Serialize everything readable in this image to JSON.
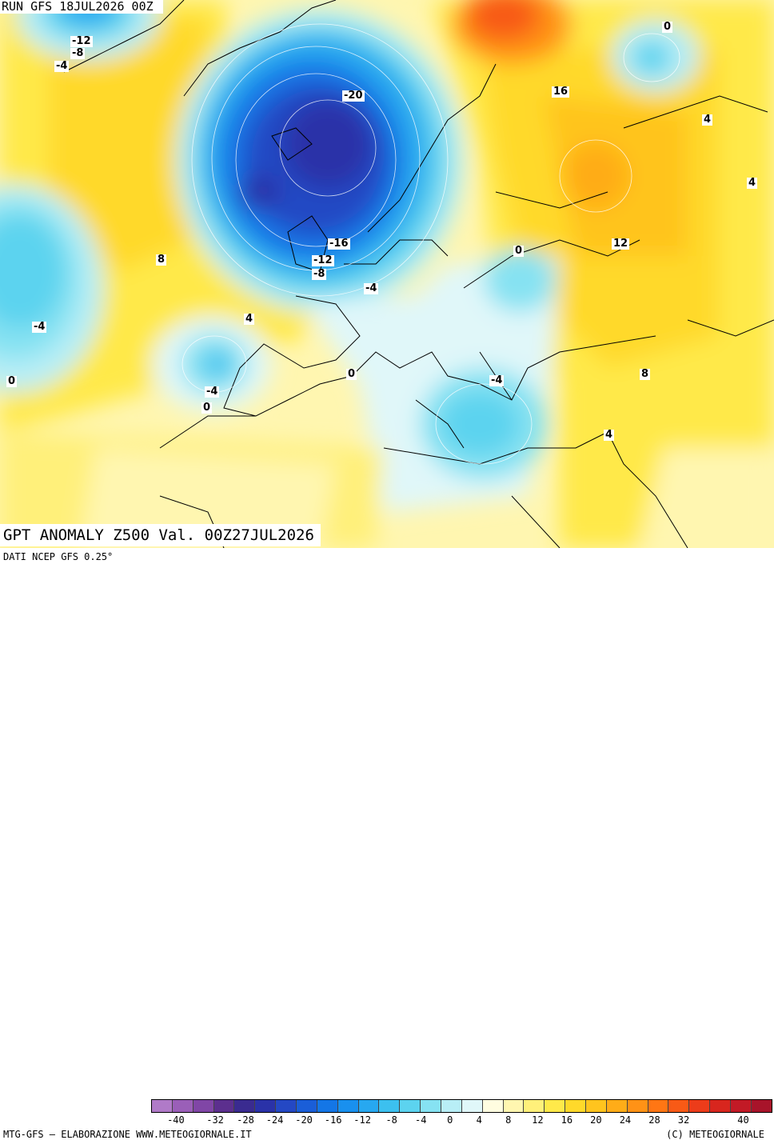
{
  "header": {
    "run": "RUN GFS 18JUL2026 00Z"
  },
  "title": "GPT ANOMALY Z500 Val. 00Z27JUL2026",
  "footer": {
    "source": "DATI NCEP GFS 0.25°",
    "credit_left": "MTG-GFS – ELABORAZIONE WWW.METEOGIORNALE.IT",
    "credit_right": "(C) METEOGIORNALE"
  },
  "colorbar": {
    "colors": [
      "#b07ac8",
      "#9a5fb8",
      "#8046a6",
      "#5c2f8e",
      "#3a2b90",
      "#2a32a8",
      "#2448c4",
      "#1a5ed8",
      "#1476e6",
      "#1990ee",
      "#27a8f0",
      "#3cc0ef",
      "#5cd3ef",
      "#86e2f2",
      "#b8eef6",
      "#e0f7f9",
      "#fffde0",
      "#fff6b0",
      "#fff07a",
      "#ffe94a",
      "#ffd92a",
      "#ffc41e",
      "#ffac18",
      "#ff9216",
      "#ff7614",
      "#f85a16",
      "#ec3c1a",
      "#d8261e",
      "#c21a26",
      "#a8142a"
    ],
    "tick_labels": [
      "-40",
      "-32",
      "-28",
      "-24",
      "-20",
      "-16",
      "-12",
      "-8",
      "-4",
      "0",
      "4",
      "8",
      "12",
      "16",
      "20",
      "24",
      "28",
      "32",
      "40"
    ]
  },
  "contour_labels": [
    {
      "text": "-12",
      "name": "contour-label-m12-north"
    },
    {
      "text": "-8",
      "name": "contour-label-m8-north"
    },
    {
      "text": "-4",
      "name": "contour-label-m4-north"
    },
    {
      "text": "-20",
      "name": "contour-label-m20"
    },
    {
      "text": "16",
      "name": "contour-label-16"
    },
    {
      "text": "0",
      "name": "contour-label-0-ne"
    },
    {
      "text": "4",
      "name": "contour-label-4-east"
    },
    {
      "text": "4",
      "name": "contour-label-4-east-edge"
    },
    {
      "text": "12",
      "name": "contour-label-12"
    },
    {
      "text": "0",
      "name": "contour-label-0-balkans"
    },
    {
      "text": "-16",
      "name": "contour-label-m16"
    },
    {
      "text": "-12",
      "name": "contour-label-m12-uk"
    },
    {
      "text": "-8",
      "name": "contour-label-m8-uk"
    },
    {
      "text": "-4",
      "name": "contour-label-m4-benelux"
    },
    {
      "text": "8",
      "name": "contour-label-8-atlantic"
    },
    {
      "text": "-4",
      "name": "contour-label-m4-west"
    },
    {
      "text": "4",
      "name": "contour-label-4-atlantic"
    },
    {
      "text": "0",
      "name": "contour-label-0-west"
    },
    {
      "text": "-4",
      "name": "contour-label-m4-iberia"
    },
    {
      "text": "0",
      "name": "contour-label-0-iberia"
    },
    {
      "text": "0",
      "name": "contour-label-0-med"
    },
    {
      "text": "-4",
      "name": "contour-label-m4-greece"
    },
    {
      "text": "8",
      "name": "contour-label-8-turkey"
    },
    {
      "text": "4",
      "name": "contour-label-4-mideast"
    }
  ]
}
